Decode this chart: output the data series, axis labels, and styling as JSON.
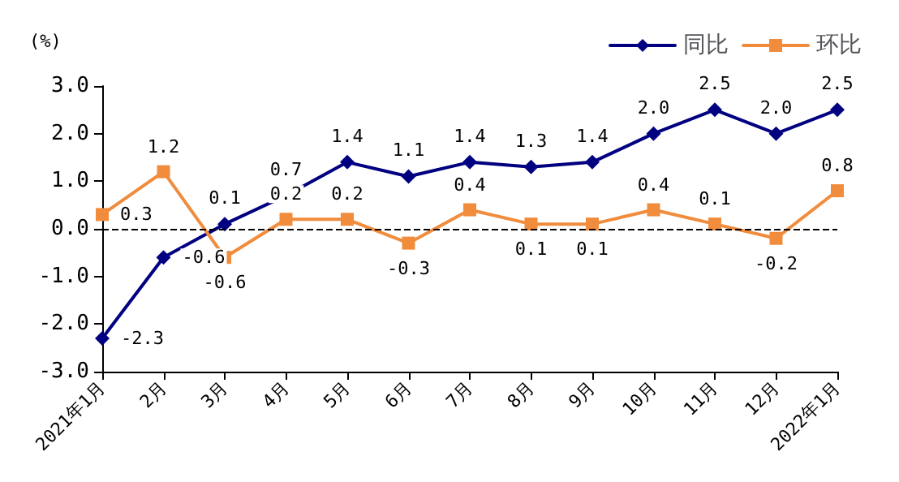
{
  "chart_data": {
    "type": "line",
    "ylabel": "(%)",
    "categories": [
      "2021年1月",
      "2月",
      "3月",
      "4月",
      "5月",
      "6月",
      "7月",
      "8月",
      "9月",
      "10月",
      "11月",
      "12月",
      "2022年1月"
    ],
    "series": [
      {
        "name": "同比",
        "color": "#000080",
        "marker": "diamond",
        "values": [
          -2.3,
          -0.6,
          0.1,
          0.7,
          1.4,
          1.1,
          1.4,
          1.3,
          1.4,
          2.0,
          2.5,
          2.0,
          2.5
        ],
        "value_labels": [
          "-2.3",
          "-0.6",
          "0.1",
          "0.7",
          "1.4",
          "1.1",
          "1.4",
          "1.3",
          "1.4",
          "2.0",
          "2.5",
          "2.0",
          "2.5"
        ]
      },
      {
        "name": "环比",
        "color": "#f08c3c",
        "marker": "square",
        "values": [
          0.3,
          1.2,
          -0.6,
          0.2,
          0.2,
          -0.3,
          0.4,
          0.1,
          0.1,
          0.4,
          0.1,
          -0.2,
          0.8
        ],
        "value_labels": [
          "0.3",
          "1.2",
          "-0.6",
          "0.2",
          "0.2",
          "-0.3",
          "0.4",
          "0.1",
          "0.1",
          "0.4",
          "0.1",
          "-0.2",
          "0.8"
        ]
      }
    ],
    "ylim": [
      -3,
      3
    ],
    "yticks": [
      {
        "value": -3,
        "label": "-3.0"
      },
      {
        "value": -2,
        "label": "-2.0"
      },
      {
        "value": -1,
        "label": "-1.0"
      },
      {
        "value": 0,
        "label": "0.0"
      },
      {
        "value": 1,
        "label": "1.0"
      },
      {
        "value": 2,
        "label": "2.0"
      },
      {
        "value": 3,
        "label": "3.0"
      }
    ],
    "ref_lines": [
      {
        "axis": "y",
        "value": 0,
        "color": "#000000",
        "line_style": "dashed"
      }
    ],
    "grid": false,
    "legend": "top right",
    "line_style": "solid"
  }
}
